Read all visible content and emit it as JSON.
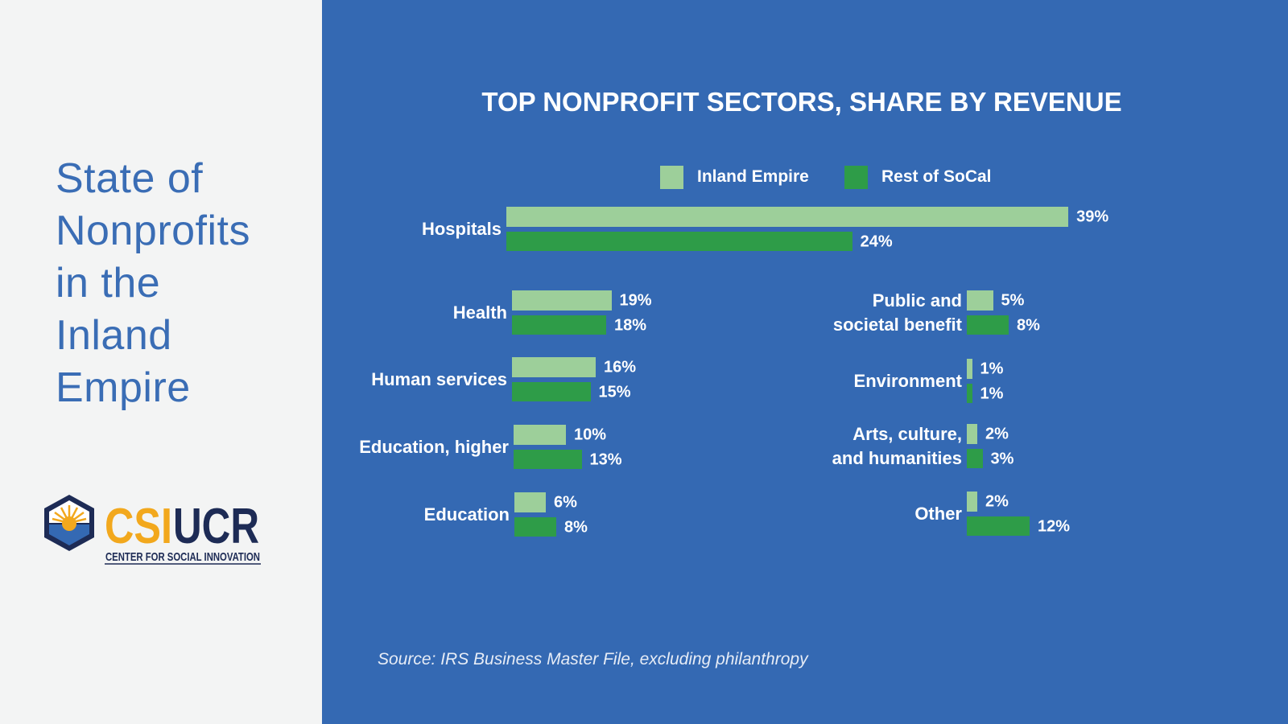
{
  "side_panel": {
    "title": "State of Nonprofits in the Inland Empire",
    "logo": {
      "left": "CSI",
      "right": "UCR",
      "tagline": "CENTER FOR SOCIAL INNOVATION"
    }
  },
  "chart_data": {
    "type": "bar",
    "orientation": "horizontal",
    "title": "TOP NONPROFIT SECTORS, SHARE BY REVENUE",
    "categories": [
      "Hospitals",
      "Health",
      "Human services",
      "Education, higher",
      "Education",
      "Public and societal benefit",
      "Environment",
      "Arts, culture, and humanities",
      "Other"
    ],
    "series": [
      {
        "name": "Inland Empire",
        "color": "#9dcf9a",
        "values": [
          39,
          19,
          16,
          10,
          6,
          5,
          1,
          2,
          2
        ],
        "value_labels": [
          "39%",
          "19%",
          "16%",
          "10%",
          "6%",
          "5%",
          "1%",
          "2%",
          "2%"
        ]
      },
      {
        "name": "Rest of SoCal",
        "color": "#2e9c48",
        "values": [
          24,
          18,
          15,
          13,
          8,
          8,
          1,
          3,
          12
        ],
        "value_labels": [
          "24%",
          "18%",
          "15%",
          "13%",
          "8%",
          "8%",
          "1%",
          "3%",
          "12%"
        ]
      }
    ],
    "source": "Source: IRS Business Master File, excluding philanthropy"
  }
}
